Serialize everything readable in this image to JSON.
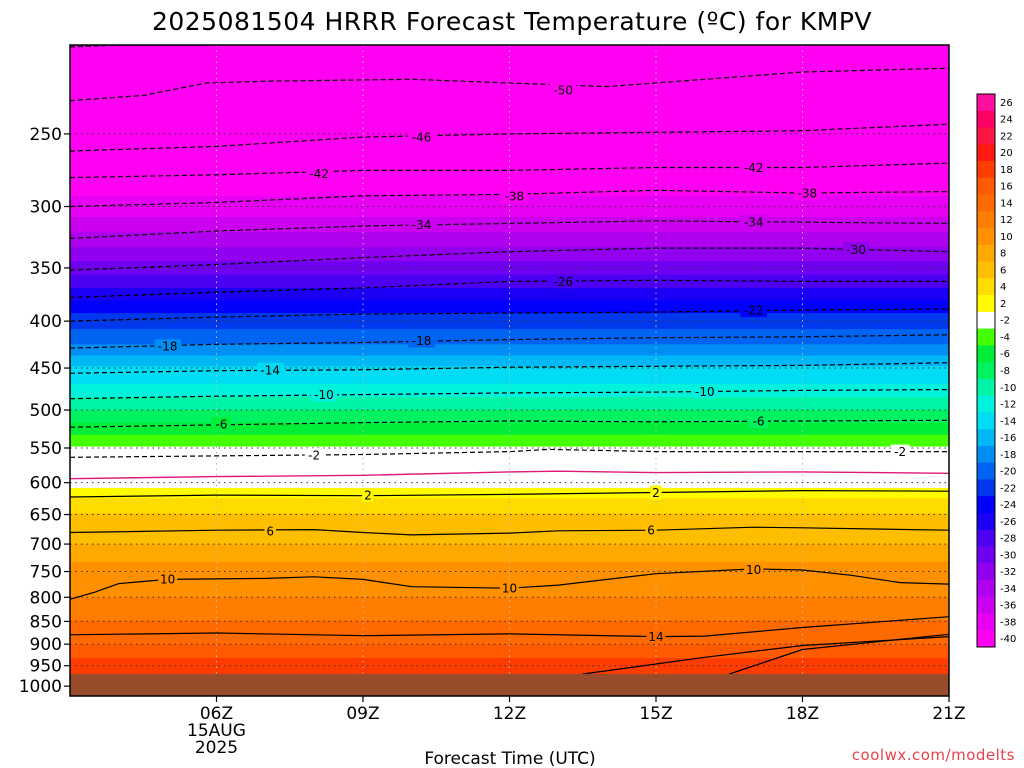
{
  "chart_data": {
    "type": "heatmap",
    "title": "2025081504 HRRR Forecast Temperature (ºC) for KMPV",
    "xlabel": "Forecast Time (UTC)",
    "ylabel": "",
    "credit": "coolwx.com/modelts",
    "x_unit": "hours UTC on 15AUG2025",
    "x_range": [
      3,
      21
    ],
    "x_ticks": [
      {
        "x": 6,
        "lines": [
          "06Z",
          "15AUG",
          "2025"
        ]
      },
      {
        "x": 9,
        "lines": [
          "09Z"
        ]
      },
      {
        "x": 12,
        "lines": [
          "12Z"
        ]
      },
      {
        "x": 15,
        "lines": [
          "15Z"
        ]
      },
      {
        "x": 18,
        "lines": [
          "18Z"
        ]
      },
      {
        "x": 21,
        "lines": [
          "21Z"
        ]
      }
    ],
    "y_axis": {
      "label": "",
      "scale": "log",
      "inverted": true,
      "range": [
        1025,
        200
      ]
    },
    "y_ticks": [
      250,
      300,
      350,
      400,
      450,
      500,
      550,
      600,
      650,
      700,
      750,
      800,
      850,
      900,
      950,
      1000
    ],
    "ground_pressure": 970,
    "ground_color": "#994c2b",
    "grid": "dotted",
    "colorbar": {
      "labels": [
        "26",
        "24",
        "22",
        "20",
        "18",
        "16",
        "14",
        "12",
        "10",
        "8",
        "6",
        "4",
        "2",
        "-2",
        "-4",
        "-6",
        "-8",
        "-10",
        "-12",
        "-14",
        "-16",
        "-18",
        "-20",
        "-22",
        "-24",
        "-26",
        "-28",
        "-30",
        "-32",
        "-34",
        "-36",
        "-38",
        "-40"
      ],
      "colors": [
        "#ff0fa0",
        "#ff0066",
        "#ff1744",
        "#ff1a12",
        "#ff3d00",
        "#ff5a00",
        "#ff6a00",
        "#ff7d00",
        "#ff9000",
        "#ffa800",
        "#ffbe00",
        "#ffdc00",
        "#fffa00",
        "#ffffff",
        "#44ff00",
        "#00ee38",
        "#00f260",
        "#00f4a6",
        "#00f2dc",
        "#00dcf4",
        "#00b8f6",
        "#008ef5",
        "#0064f2",
        "#0038ee",
        "#0000fc",
        "#1a00f4",
        "#4c00f4",
        "#7000f2",
        "#9200f0",
        "#b000f0",
        "#cc00f0",
        "#e800f4",
        "#ff00f2"
      ]
    },
    "temperature_levels": [
      {
        "p": 200,
        "t": -58
      },
      {
        "p": 225,
        "t": -54
      },
      {
        "p": 250,
        "t": -47
      },
      {
        "p": 275,
        "t": -42
      },
      {
        "p": 300,
        "t": -38
      },
      {
        "p": 325,
        "t": -34
      },
      {
        "p": 350,
        "t": -30
      },
      {
        "p": 375,
        "t": -26
      },
      {
        "p": 400,
        "t": -22
      },
      {
        "p": 425,
        "t": -19
      },
      {
        "p": 450,
        "t": -15
      },
      {
        "p": 475,
        "t": -12
      },
      {
        "p": 500,
        "t": -9
      },
      {
        "p": 525,
        "t": -6
      },
      {
        "p": 550,
        "t": -3
      },
      {
        "p": 575,
        "t": 0
      },
      {
        "p": 600,
        "t": 1
      },
      {
        "p": 625,
        "t": 3
      },
      {
        "p": 650,
        "t": 5
      },
      {
        "p": 675,
        "t": 6
      },
      {
        "p": 700,
        "t": 7
      },
      {
        "p": 750,
        "t": 10
      },
      {
        "p": 800,
        "t": 11
      },
      {
        "p": 850,
        "t": 13
      },
      {
        "p": 900,
        "t": 15
      },
      {
        "p": 950,
        "t": 18
      }
    ],
    "contours": [
      {
        "t": -54,
        "style": "dashed",
        "points": [
          [
            3,
            201
          ],
          [
            4,
            200
          ],
          [
            5,
            200
          ],
          [
            6,
            200
          ]
        ]
      },
      {
        "t": -50,
        "style": "dashed",
        "points": [
          [
            3,
            230
          ],
          [
            4.5,
            227
          ],
          [
            5.8,
            220
          ],
          [
            7,
            219
          ],
          [
            10,
            218
          ],
          [
            12,
            220
          ],
          [
            14,
            222
          ],
          [
            16,
            218
          ],
          [
            18,
            214
          ],
          [
            21,
            212
          ],
          [
            21.9,
            212
          ]
        ]
      },
      {
        "t": -46,
        "style": "dashed",
        "points": [
          [
            3,
            261
          ],
          [
            6,
            258
          ],
          [
            9,
            252
          ],
          [
            12,
            250
          ],
          [
            15,
            249
          ],
          [
            18,
            248
          ],
          [
            21,
            244
          ],
          [
            21.9,
            243
          ]
        ]
      },
      {
        "t": -42,
        "style": "dashed",
        "points": [
          [
            3,
            279
          ],
          [
            6,
            277
          ],
          [
            9,
            274
          ],
          [
            12,
            274
          ],
          [
            15,
            272
          ],
          [
            18,
            272
          ],
          [
            21,
            269
          ],
          [
            21.9,
            268
          ]
        ]
      },
      {
        "t": -38,
        "style": "dashed",
        "points": [
          [
            3,
            300
          ],
          [
            6,
            297
          ],
          [
            9,
            292
          ],
          [
            12,
            291
          ],
          [
            15,
            288
          ],
          [
            18,
            290
          ],
          [
            21,
            289
          ],
          [
            21.9,
            289
          ]
        ]
      },
      {
        "t": -34,
        "style": "dashed",
        "points": [
          [
            3,
            325
          ],
          [
            6,
            319
          ],
          [
            9,
            315
          ],
          [
            12,
            313
          ],
          [
            15,
            311
          ],
          [
            18,
            312
          ],
          [
            21,
            313
          ],
          [
            21.9,
            314
          ]
        ]
      },
      {
        "t": -30,
        "style": "dashed",
        "points": [
          [
            3,
            352
          ],
          [
            6,
            347
          ],
          [
            9,
            341
          ],
          [
            12,
            336
          ],
          [
            15,
            333
          ],
          [
            18,
            333
          ],
          [
            21,
            336
          ],
          [
            21.9,
            337
          ]
        ]
      },
      {
        "t": -26,
        "style": "dashed",
        "points": [
          [
            3,
            377
          ],
          [
            6,
            372
          ],
          [
            9,
            368
          ],
          [
            12,
            362
          ],
          [
            15,
            361
          ],
          [
            18,
            362
          ],
          [
            21,
            362
          ],
          [
            21.9,
            362
          ]
        ]
      },
      {
        "t": -22,
        "style": "dashed",
        "points": [
          [
            3,
            400
          ],
          [
            6,
            396
          ],
          [
            9,
            393
          ],
          [
            12,
            392
          ],
          [
            15,
            391
          ],
          [
            18,
            389
          ],
          [
            21,
            388
          ],
          [
            21.9,
            388
          ]
        ]
      },
      {
        "t": -18,
        "style": "dashed",
        "points": [
          [
            3,
            428
          ],
          [
            6,
            424
          ],
          [
            9,
            422
          ],
          [
            12,
            419
          ],
          [
            15,
            417
          ],
          [
            18,
            416
          ],
          [
            21,
            414
          ],
          [
            21.9,
            414
          ]
        ]
      },
      {
        "t": -14,
        "style": "dashed",
        "points": [
          [
            3,
            456
          ],
          [
            6,
            453
          ],
          [
            9,
            452
          ],
          [
            12,
            449
          ],
          [
            15,
            448
          ],
          [
            18,
            447
          ],
          [
            21,
            444
          ],
          [
            21.9,
            443
          ]
        ]
      },
      {
        "t": -10,
        "style": "dashed",
        "points": [
          [
            3,
            486
          ],
          [
            6,
            483
          ],
          [
            9,
            481
          ],
          [
            12,
            479
          ],
          [
            15,
            478
          ],
          [
            18,
            476
          ],
          [
            21,
            475
          ],
          [
            21.9,
            475
          ]
        ]
      },
      {
        "t": -6,
        "style": "dashed",
        "points": [
          [
            3,
            522
          ],
          [
            6,
            519
          ],
          [
            9,
            516
          ],
          [
            12,
            514
          ],
          [
            15,
            515
          ],
          [
            18,
            514
          ],
          [
            21,
            513
          ],
          [
            21.9,
            513
          ]
        ]
      },
      {
        "t": -2,
        "style": "dashed",
        "points": [
          [
            3,
            563
          ],
          [
            6,
            561
          ],
          [
            9,
            559
          ],
          [
            12,
            555
          ],
          [
            12.8,
            552
          ],
          [
            15,
            555
          ],
          [
            18,
            555
          ],
          [
            21,
            555
          ],
          [
            21.9,
            555
          ]
        ]
      },
      {
        "t": 0,
        "style": "magenta",
        "points": [
          [
            3,
            594
          ],
          [
            6,
            591
          ],
          [
            9,
            589
          ],
          [
            12,
            584
          ],
          [
            13,
            583
          ],
          [
            15,
            585
          ],
          [
            18,
            584
          ],
          [
            21,
            586
          ],
          [
            21.9,
            586
          ]
        ]
      },
      {
        "t": 2,
        "style": "solid",
        "points": [
          [
            3,
            622
          ],
          [
            6,
            619
          ],
          [
            9,
            620
          ],
          [
            12,
            618
          ],
          [
            15,
            615
          ],
          [
            18,
            612
          ],
          [
            21,
            613
          ],
          [
            21.9,
            613
          ]
        ]
      },
      {
        "t": 6,
        "style": "solid",
        "points": [
          [
            3,
            680
          ],
          [
            6,
            676
          ],
          [
            8,
            675
          ],
          [
            9,
            680
          ],
          [
            10,
            684
          ],
          [
            12,
            681
          ],
          [
            13,
            677
          ],
          [
            15,
            676
          ],
          [
            17,
            671
          ],
          [
            18,
            672
          ],
          [
            21,
            676
          ],
          [
            21.9,
            676
          ]
        ]
      },
      {
        "t": 10,
        "style": "solid",
        "points": [
          [
            3,
            804
          ],
          [
            3.5,
            790
          ],
          [
            4,
            773
          ],
          [
            5,
            765
          ],
          [
            6,
            764
          ],
          [
            7,
            763
          ],
          [
            8,
            760
          ],
          [
            9,
            765
          ],
          [
            10,
            779
          ],
          [
            12,
            782
          ],
          [
            13,
            776
          ],
          [
            15,
            754
          ],
          [
            17,
            745
          ],
          [
            18,
            747
          ],
          [
            19,
            757
          ],
          [
            20,
            771
          ],
          [
            21,
            774
          ],
          [
            21.9,
            768
          ]
        ]
      },
      {
        "t": 14,
        "style": "solid",
        "points": [
          [
            3,
            879
          ],
          [
            6,
            875
          ],
          [
            9,
            881
          ],
          [
            12,
            877
          ],
          [
            15,
            883
          ],
          [
            16,
            882
          ],
          [
            18,
            863
          ],
          [
            21,
            840
          ],
          [
            21.9,
            836
          ]
        ]
      },
      {
        "t": 18,
        "style": "solid",
        "points": [
          [
            16.5,
            970
          ],
          [
            18,
            912
          ],
          [
            21,
            878
          ],
          [
            21.9,
            877
          ]
        ]
      },
      {
        "t": 18,
        "style": "solid",
        "points": [
          [
            13.5,
            970
          ],
          [
            16,
            930
          ],
          [
            18,
            903
          ],
          [
            21,
            883
          ],
          [
            21.9,
            882
          ]
        ]
      }
    ],
    "contour_labels": [
      {
        "text": "-50",
        "x": 13.1,
        "p": 224
      },
      {
        "text": "-46",
        "x": 10.2,
        "p": 252
      },
      {
        "text": "-42",
        "x": 8.1,
        "p": 276
      },
      {
        "text": "-42",
        "x": 17.0,
        "p": 272
      },
      {
        "text": "-38",
        "x": 12.1,
        "p": 292
      },
      {
        "text": "-38",
        "x": 18.1,
        "p": 290
      },
      {
        "text": "-34",
        "x": 10.2,
        "p": 314
      },
      {
        "text": "-34",
        "x": 17.0,
        "p": 312
      },
      {
        "text": "-30",
        "x": 19.1,
        "p": 334
      },
      {
        "text": "-26",
        "x": 13.1,
        "p": 362
      },
      {
        "text": "-22",
        "x": 17.0,
        "p": 389
      },
      {
        "text": "-18",
        "x": 5.0,
        "p": 426
      },
      {
        "text": "-18",
        "x": 10.2,
        "p": 420
      },
      {
        "text": "-14",
        "x": 7.1,
        "p": 452
      },
      {
        "text": "-10",
        "x": 8.2,
        "p": 481
      },
      {
        "text": "-10",
        "x": 16.0,
        "p": 477
      },
      {
        "text": "-6",
        "x": 6.1,
        "p": 518
      },
      {
        "text": "-6",
        "x": 17.1,
        "p": 514
      },
      {
        "text": "-2",
        "x": 8.0,
        "p": 560
      },
      {
        "text": "-2",
        "x": 20.0,
        "p": 555
      },
      {
        "text": "2",
        "x": 9.1,
        "p": 619
      },
      {
        "text": "2",
        "x": 15.0,
        "p": 615
      },
      {
        "text": "6",
        "x": 7.1,
        "p": 677
      },
      {
        "text": "6",
        "x": 14.9,
        "p": 676
      },
      {
        "text": "10",
        "x": 5.0,
        "p": 764
      },
      {
        "text": "10",
        "x": 12.0,
        "p": 782
      },
      {
        "text": "10",
        "x": 17.0,
        "p": 746
      },
      {
        "text": "14",
        "x": 15.0,
        "p": 883
      }
    ]
  }
}
